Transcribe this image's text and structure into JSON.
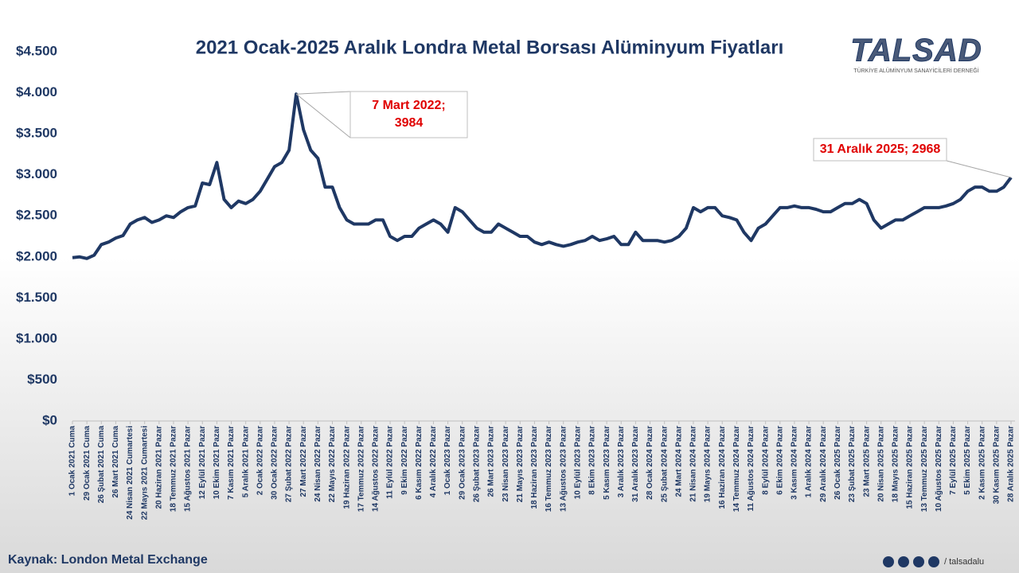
{
  "chart_data": {
    "type": "line",
    "title": "2021 Ocak-2025 Aralık Londra Metal Borsası Alüminyum Fiyatları",
    "categories": [
      "1 Ocak 2021 Cuma",
      null,
      "29 Ocak 2021 Cuma",
      null,
      "26 Şubat 2021 Cuma",
      null,
      "26 Mart 2021 Cuma",
      null,
      "24 Nisan 2021 Cumartesi",
      null,
      "22 Mayıs 2021 Cumartesi",
      null,
      "20 Haziran 2021 Pazar",
      null,
      "18 Temmuz 2021 Pazar",
      null,
      "15 Ağustos 2021 Pazar",
      null,
      "12 Eylül 2021 Pazar",
      null,
      "10 Ekim 2021 Pazar",
      null,
      "7 Kasım 2021 Pazar",
      null,
      "5 Aralık 2021 Pazar",
      null,
      "2 Ocak 2022 Pazar",
      null,
      "30 Ocak 2022 Pazar",
      null,
      "27 Şubat 2022 Pazar",
      null,
      "27 Mart 2022 Pazar",
      null,
      "24 Nisan 2022 Pazar",
      null,
      "22 Mayıs 2022 Pazar",
      null,
      "19 Haziran 2022 Pazar",
      null,
      "17 Temmuz 2022 Pazar",
      null,
      "14 Ağustos 2022 Pazar",
      null,
      "11 Eylül 2022 Pazar",
      null,
      "9 Ekim 2022 Pazar",
      null,
      "6 Kasım 2022 Pazar",
      null,
      "4 Aralık 2022 Pazar",
      null,
      "1 Ocak 2023 Pazar",
      null,
      "29 Ocak 2023 Pazar",
      null,
      "26 Şubat 2023 Pazar",
      null,
      "26 Mart 2023 Pazar",
      null,
      "23 Nisan 2023 Pazar",
      null,
      "21 Mayıs 2023 Pazar",
      null,
      "18 Haziran 2023 Pazar",
      null,
      "16 Temmuz 2023 Pazar",
      null,
      "13 Ağustos 2023 Pazar",
      null,
      "10 Eylül 2023 Pazar",
      null,
      "8 Ekim 2023 Pazar",
      null,
      "5 Kasım 2023 Pazar",
      null,
      "3 Aralık 2023 Pazar",
      null,
      "31 Aralık 2023 Pazar",
      null,
      "28 Ocak 2024 Pazar",
      null,
      "25 Şubat 2024 Pazar",
      null,
      "24 Mart 2024 Pazar",
      null,
      "21 Nisan 2024 Pazar",
      null,
      "19 Mayıs 2024 Pazar",
      null,
      "16 Haziran 2024 Pazar",
      null,
      "14 Temmuz 2024 Pazar",
      null,
      "11 Ağustos 2024 Pazar",
      null,
      "8 Eylül 2024 Pazar",
      null,
      "6 Ekim 2024 Pazar",
      null,
      "3 Kasım 2024 Pazar",
      null,
      "1 Aralık 2024 Pazar",
      null,
      "29 Aralık 2024 Pazar",
      null,
      "26 Ocak 2025 Pazar",
      null,
      "23 Şubat 2025 Pazar",
      null,
      "23 Mart 2025 Pazar",
      null,
      "20 Nisan 2025 Pazar",
      null,
      "18 Mayıs 2025 Pazar",
      null,
      "15 Haziran 2025 Pazar",
      null,
      "13 Temmuz 2025 Pazar",
      null,
      "10 Ağustos 2025 Pazar",
      null,
      "7 Eylül 2025 Pazar",
      null,
      "5 Ekim 2025 Pazar",
      null,
      "2 Kasım 2025 Pazar",
      null,
      "30 Kasım 2025 Pazar",
      null,
      "28 Aralık 2025 Pazar"
    ],
    "series": [
      {
        "color": "#1f3864",
        "values": [
          1990,
          2000,
          1980,
          2020,
          2150,
          2180,
          2230,
          2260,
          2400,
          2450,
          2480,
          2420,
          2450,
          2500,
          2480,
          2550,
          2600,
          2620,
          2900,
          2880,
          3150,
          2700,
          2600,
          2680,
          2650,
          2700,
          2800,
          2950,
          3100,
          3150,
          3300,
          3984,
          3550,
          3300,
          3200,
          2850,
          2850,
          2600,
          2450,
          2400,
          2400,
          2400,
          2450,
          2450,
          2250,
          2200,
          2250,
          2250,
          2350,
          2400,
          2450,
          2400,
          2300,
          2600,
          2550,
          2450,
          2350,
          2300,
          2300,
          2400,
          2350,
          2300,
          2250,
          2250,
          2180,
          2150,
          2180,
          2150,
          2130,
          2150,
          2180,
          2200,
          2250,
          2200,
          2220,
          2250,
          2150,
          2150,
          2300,
          2200,
          2200,
          2200,
          2180,
          2200,
          2250,
          2350,
          2600,
          2550,
          2600,
          2600,
          2500,
          2480,
          2450,
          2300,
          2200,
          2350,
          2400,
          2500,
          2600,
          2600,
          2620,
          2600,
          2600,
          2580,
          2550,
          2550,
          2600,
          2650,
          2650,
          2700,
          2650,
          2450,
          2350,
          2400,
          2450,
          2450,
          2500,
          2550,
          2600,
          2600,
          2600,
          2620,
          2650,
          2700,
          2800,
          2850,
          2850,
          2800,
          2800,
          2850,
          2968
        ]
      }
    ],
    "ylim": [
      0,
      4500
    ],
    "yticks": [
      {
        "value": 0,
        "label": "$0"
      },
      {
        "value": 500,
        "label": "$500"
      },
      {
        "value": 1000,
        "label": "$1.000"
      },
      {
        "value": 1500,
        "label": "$1.500"
      },
      {
        "value": 2000,
        "label": "$2.000"
      },
      {
        "value": 2500,
        "label": "$2.500"
      },
      {
        "value": 3000,
        "label": "$3.000"
      },
      {
        "value": 3500,
        "label": "$3.500"
      },
      {
        "value": 4000,
        "label": "$4.000"
      },
      {
        "value": 4500,
        "label": "$4.500"
      }
    ],
    "grid": false,
    "annotations": [
      {
        "lines": [
          "7 Mart 2022;",
          "3984"
        ],
        "value": 3984
      },
      {
        "lines": [
          "31 Aralık 2025; 2968"
        ],
        "value": 2968
      }
    ],
    "source": "Kaynak: London Metal Exchange"
  },
  "logo": {
    "name": "TALSAD",
    "subtitle": "TÜRKİYE ALÜMİNYUM SANAYİCİLERİ DERNEĞİ"
  },
  "social": "/ talsadalu"
}
